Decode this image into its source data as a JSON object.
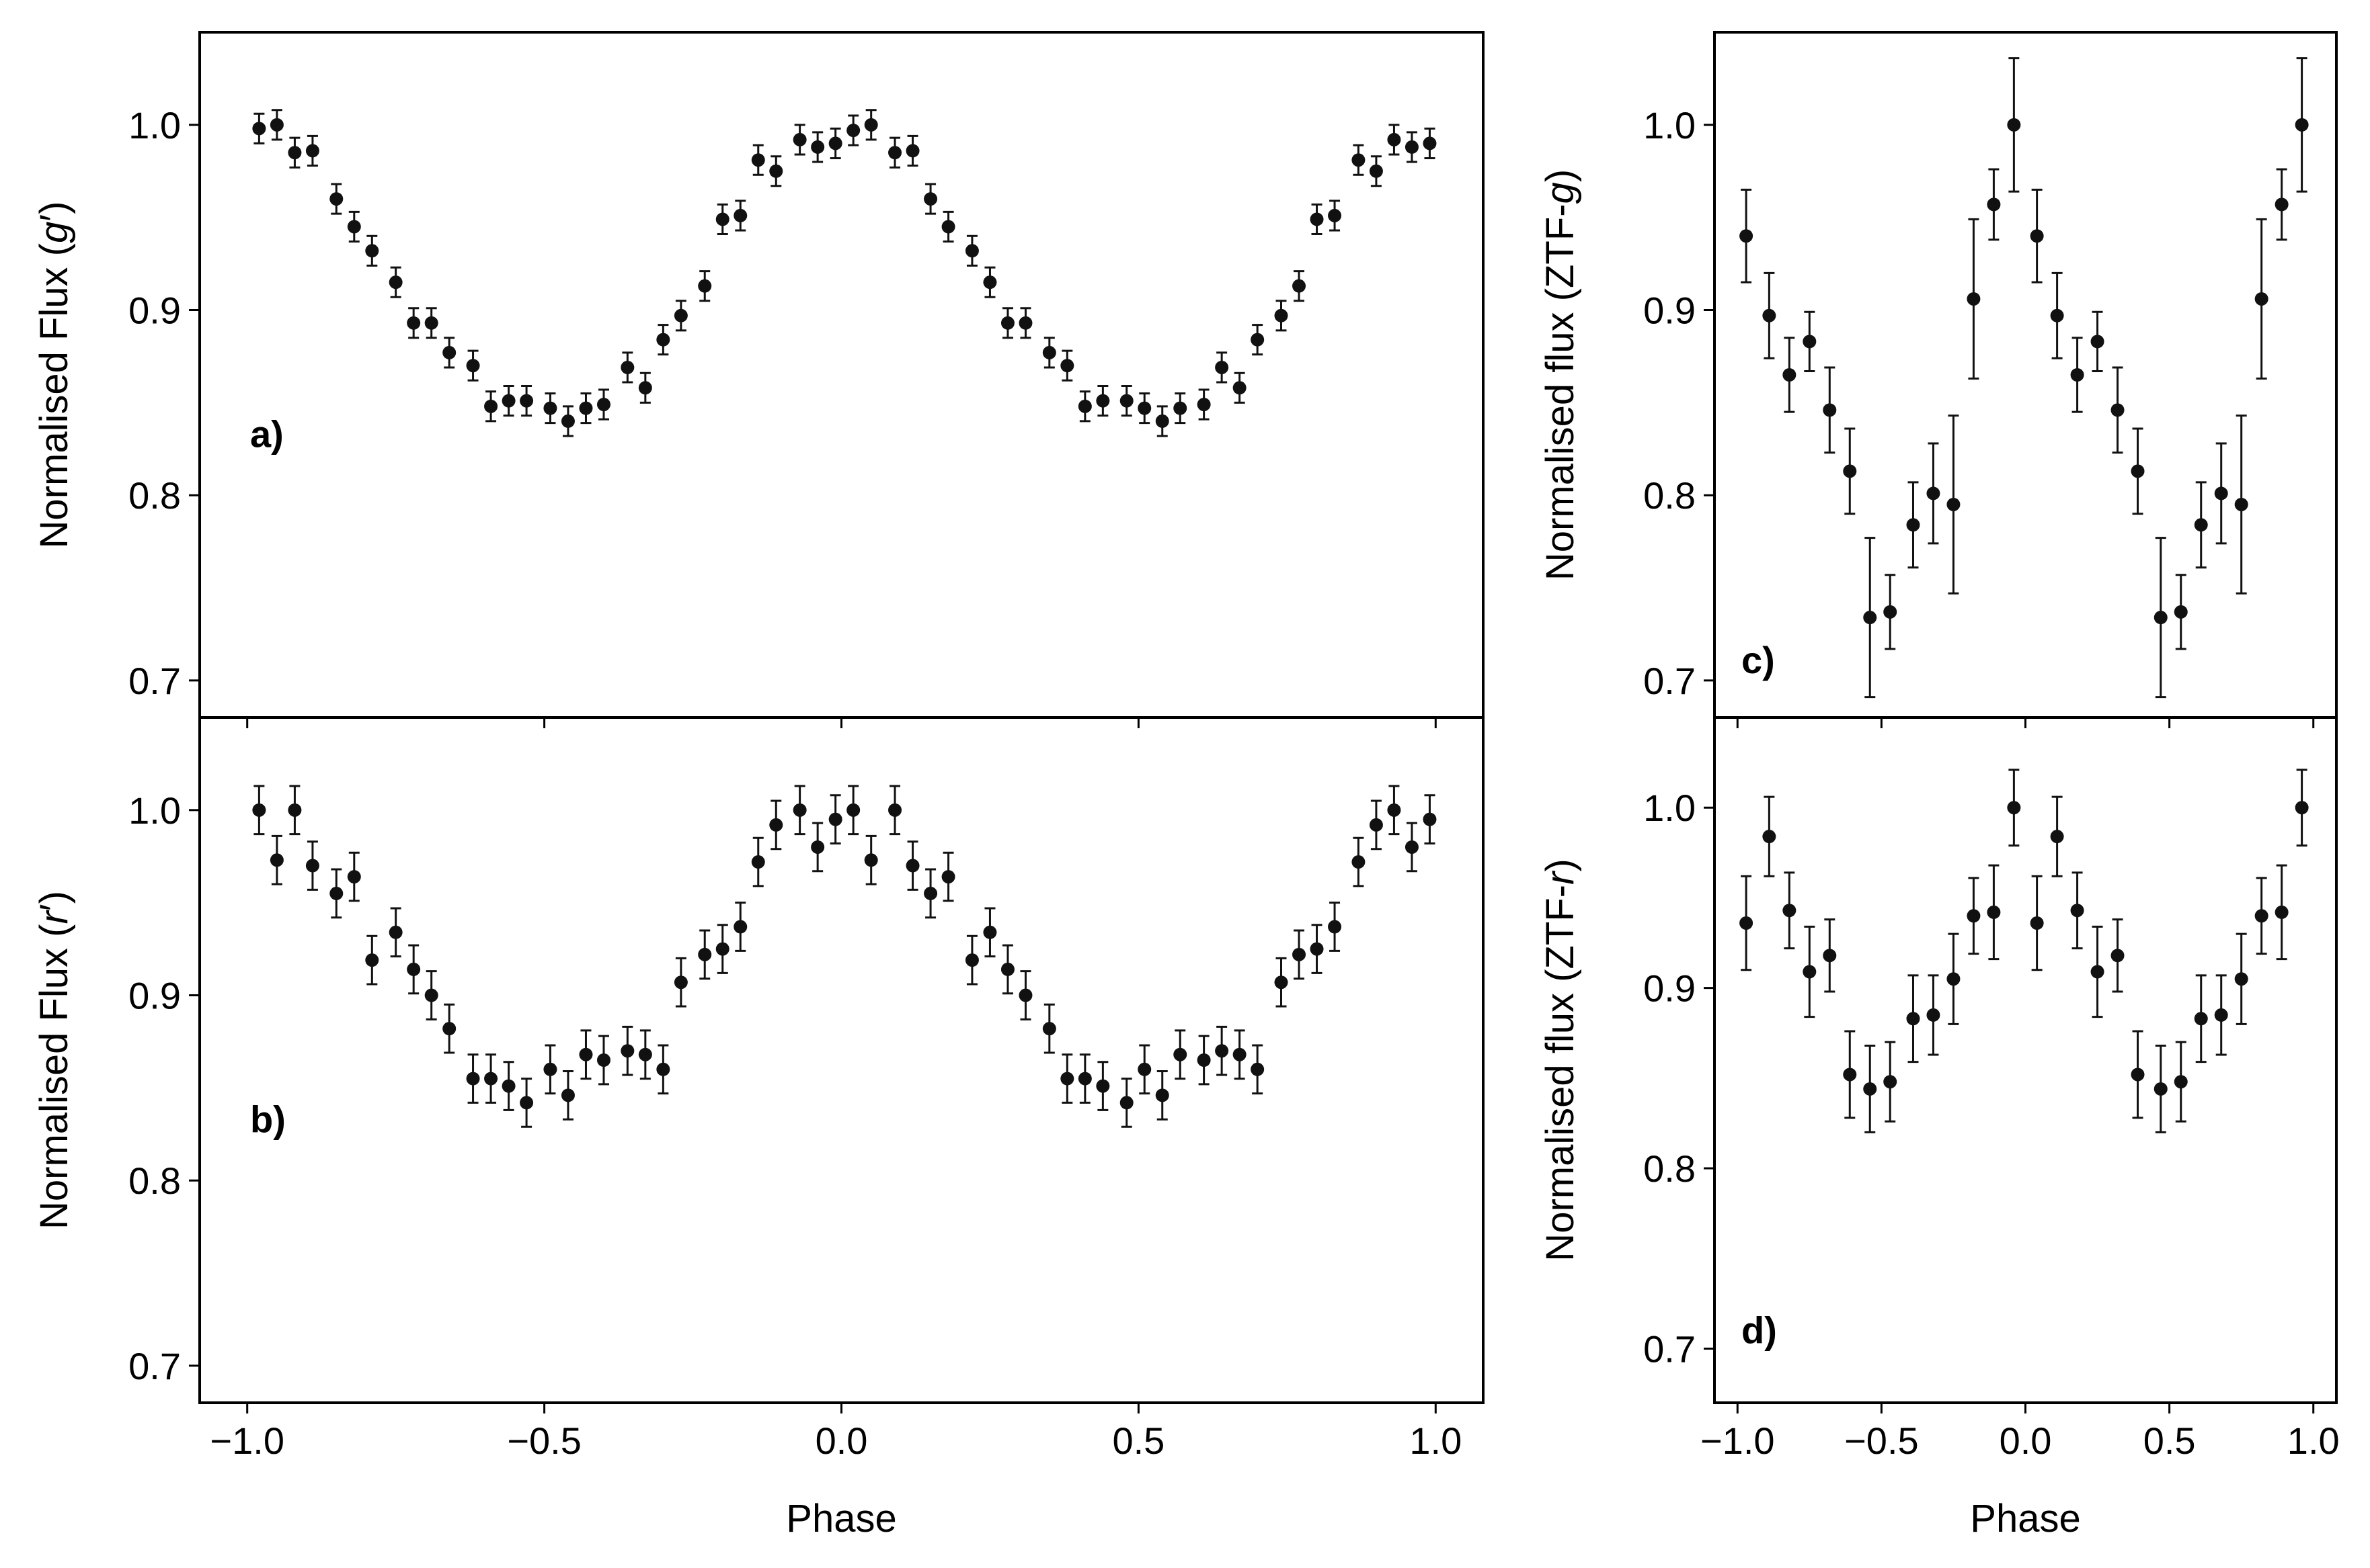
{
  "chart_data": [
    {
      "panel": "a)",
      "type": "scatter",
      "ylabel": "Normalised Flux (g′)",
      "xlabel": "",
      "xlim": [
        -1.08,
        1.08
      ],
      "ylim": [
        0.68,
        1.05
      ],
      "xticks": [
        "−1.0",
        "−0.5",
        "0.0",
        "0.5",
        "1.0"
      ],
      "yticks": [
        "0.7",
        "0.8",
        "0.9",
        "1.0"
      ],
      "marker_color": "#111111",
      "x": [
        -0.98,
        -0.95,
        -0.92,
        -0.89,
        -0.85,
        -0.82,
        -0.79,
        -0.75,
        -0.72,
        -0.69,
        -0.66,
        -0.62,
        -0.59,
        -0.56,
        -0.53,
        -0.49,
        -0.46,
        -0.43,
        -0.4,
        -0.36,
        -0.33,
        -0.3,
        -0.27,
        -0.23,
        -0.2,
        -0.17,
        -0.14,
        -0.11,
        -0.07,
        -0.04,
        -0.01,
        0.02,
        0.05,
        0.09,
        0.12,
        0.15,
        0.18,
        0.22,
        0.25,
        0.28,
        0.31,
        0.35,
        0.38,
        0.41,
        0.44,
        0.48,
        0.51,
        0.54,
        0.57,
        0.61,
        0.64,
        0.67,
        0.7,
        0.74,
        0.77,
        0.8,
        0.83,
        0.87,
        0.9,
        0.93,
        0.96,
        0.99
      ],
      "y": [
        0.998,
        1.0,
        0.985,
        0.986,
        0.96,
        0.945,
        0.932,
        0.915,
        0.893,
        0.893,
        0.877,
        0.87,
        0.848,
        0.851,
        0.851,
        0.847,
        0.84,
        0.847,
        0.849,
        0.869,
        0.858,
        0.884,
        0.897,
        0.913,
        0.949,
        0.951,
        0.981,
        0.975,
        0.992,
        0.988,
        0.99,
        0.997,
        1.0,
        0.985,
        0.986,
        0.96,
        0.945,
        0.932,
        0.915,
        0.893,
        0.893,
        0.877,
        0.87,
        0.848,
        0.851,
        0.851,
        0.847,
        0.84,
        0.847,
        0.849,
        0.869,
        0.858,
        0.884,
        0.897,
        0.913,
        0.949,
        0.951,
        0.981,
        0.975,
        0.992,
        0.988,
        0.99
      ],
      "yerr": [
        0.008,
        0.008,
        0.008,
        0.008,
        0.008,
        0.008,
        0.008,
        0.008,
        0.008,
        0.008,
        0.008,
        0.008,
        0.008,
        0.008,
        0.008,
        0.008,
        0.008,
        0.008,
        0.008,
        0.008,
        0.008,
        0.008,
        0.008,
        0.008,
        0.008,
        0.008,
        0.008,
        0.008,
        0.008,
        0.008,
        0.008,
        0.008,
        0.008,
        0.008,
        0.008,
        0.008,
        0.008,
        0.008,
        0.008,
        0.008,
        0.008,
        0.008,
        0.008,
        0.008,
        0.008,
        0.008,
        0.008,
        0.008,
        0.008,
        0.008,
        0.008,
        0.008,
        0.008,
        0.008,
        0.008,
        0.008,
        0.008,
        0.008,
        0.008,
        0.008,
        0.008,
        0.008
      ]
    },
    {
      "panel": "b)",
      "type": "scatter",
      "ylabel": "Normalised Flux (r′)",
      "xlabel": "Phase",
      "xlim": [
        -1.08,
        1.08
      ],
      "ylim": [
        0.68,
        1.05
      ],
      "xticks": [
        "−1.0",
        "−0.5",
        "0.0",
        "0.5",
        "1.0"
      ],
      "yticks": [
        "0.7",
        "0.8",
        "0.9",
        "1.0"
      ],
      "marker_color": "#111111",
      "x": [
        -0.98,
        -0.95,
        -0.92,
        -0.89,
        -0.85,
        -0.82,
        -0.79,
        -0.75,
        -0.72,
        -0.69,
        -0.66,
        -0.62,
        -0.59,
        -0.56,
        -0.53,
        -0.49,
        -0.46,
        -0.43,
        -0.4,
        -0.36,
        -0.33,
        -0.3,
        -0.27,
        -0.23,
        -0.2,
        -0.17,
        -0.14,
        -0.11,
        -0.07,
        -0.04,
        -0.01,
        0.02,
        0.05,
        0.09,
        0.12,
        0.15,
        0.18,
        0.22,
        0.25,
        0.28,
        0.31,
        0.35,
        0.38,
        0.41,
        0.44,
        0.48,
        0.51,
        0.54,
        0.57,
        0.61,
        0.64,
        0.67,
        0.7,
        0.74,
        0.77,
        0.8,
        0.83,
        0.87,
        0.9,
        0.93,
        0.96,
        0.99
      ],
      "y": [
        1.0,
        0.973,
        1.0,
        0.97,
        0.955,
        0.964,
        0.919,
        0.934,
        0.914,
        0.9,
        0.882,
        0.855,
        0.855,
        0.851,
        0.842,
        0.86,
        0.846,
        0.868,
        0.865,
        0.87,
        0.868,
        0.86,
        0.907,
        0.922,
        0.925,
        0.937,
        0.972,
        0.992,
        1.0,
        0.98,
        0.995,
        1.0,
        0.973,
        1.0,
        0.97,
        0.955,
        0.964,
        0.919,
        0.934,
        0.914,
        0.9,
        0.882,
        0.855,
        0.855,
        0.851,
        0.842,
        0.86,
        0.846,
        0.868,
        0.865,
        0.87,
        0.868,
        0.86,
        0.907,
        0.922,
        0.925,
        0.937,
        0.972,
        0.992,
        1.0,
        0.98,
        0.995
      ],
      "yerr": [
        0.013,
        0.013,
        0.013,
        0.013,
        0.013,
        0.013,
        0.013,
        0.013,
        0.013,
        0.013,
        0.013,
        0.013,
        0.013,
        0.013,
        0.013,
        0.013,
        0.013,
        0.013,
        0.013,
        0.013,
        0.013,
        0.013,
        0.013,
        0.013,
        0.013,
        0.013,
        0.013,
        0.013,
        0.013,
        0.013,
        0.013,
        0.013,
        0.013,
        0.013,
        0.013,
        0.013,
        0.013,
        0.013,
        0.013,
        0.013,
        0.013,
        0.013,
        0.013,
        0.013,
        0.013,
        0.013,
        0.013,
        0.013,
        0.013,
        0.013,
        0.013,
        0.013,
        0.013,
        0.013,
        0.013,
        0.013,
        0.013,
        0.013,
        0.013,
        0.013,
        0.013,
        0.013
      ]
    },
    {
      "panel": "c)",
      "type": "scatter",
      "ylabel": "Normalised flux (ZTF-g)",
      "xlabel": "",
      "xlim": [
        -1.08,
        1.08
      ],
      "ylim": [
        0.68,
        1.05
      ],
      "xticks": [
        "−1.0",
        "−0.5",
        "0.0",
        "0.5",
        "1.0"
      ],
      "yticks": [
        "0.7",
        "0.8",
        "0.9",
        "1.0"
      ],
      "marker_color": "#111111",
      "x": [
        -0.97,
        -0.89,
        -0.82,
        -0.75,
        -0.68,
        -0.61,
        -0.54,
        -0.47,
        -0.39,
        -0.32,
        -0.25,
        -0.18,
        -0.11,
        -0.04,
        0.04,
        0.11,
        0.18,
        0.25,
        0.32,
        0.39,
        0.47,
        0.54,
        0.61,
        0.68,
        0.75,
        0.82,
        0.89,
        0.96
      ],
      "y": [
        0.94,
        0.897,
        0.865,
        0.883,
        0.846,
        0.813,
        0.734,
        0.737,
        0.784,
        0.801,
        0.795,
        0.906,
        0.957,
        1.0,
        0.94,
        0.897,
        0.865,
        0.883,
        0.846,
        0.813,
        0.734,
        0.737,
        0.784,
        0.801,
        0.795,
        0.906,
        0.957,
        1.0
      ],
      "yerr": [
        0.025,
        0.023,
        0.02,
        0.016,
        0.023,
        0.023,
        0.043,
        0.02,
        0.023,
        0.027,
        0.048,
        0.043,
        0.019,
        0.036,
        0.025,
        0.023,
        0.02,
        0.016,
        0.023,
        0.023,
        0.043,
        0.02,
        0.023,
        0.027,
        0.048,
        0.043,
        0.019,
        0.036
      ]
    },
    {
      "panel": "d)",
      "type": "scatter",
      "ylabel": "Normalised flux (ZTF-r)",
      "xlabel": "Phase",
      "xlim": [
        -1.08,
        1.08
      ],
      "ylim": [
        0.67,
        1.05
      ],
      "xticks": [
        "−1.0",
        "−0.5",
        "0.0",
        "0.5",
        "1.0"
      ],
      "yticks": [
        "0.7",
        "0.8",
        "0.9",
        "1.0"
      ],
      "marker_color": "#111111",
      "x": [
        -0.97,
        -0.89,
        -0.82,
        -0.75,
        -0.68,
        -0.61,
        -0.54,
        -0.47,
        -0.39,
        -0.32,
        -0.25,
        -0.18,
        -0.11,
        -0.04,
        0.04,
        0.11,
        0.18,
        0.25,
        0.32,
        0.39,
        0.47,
        0.54,
        0.61,
        0.68,
        0.75,
        0.82,
        0.89,
        0.96
      ],
      "y": [
        0.936,
        0.984,
        0.943,
        0.909,
        0.918,
        0.852,
        0.844,
        0.848,
        0.883,
        0.885,
        0.905,
        0.94,
        0.942,
        1.0,
        0.936,
        0.984,
        0.943,
        0.909,
        0.918,
        0.852,
        0.844,
        0.848,
        0.883,
        0.885,
        0.905,
        0.94,
        0.942,
        1.0
      ],
      "yerr": [
        0.026,
        0.022,
        0.021,
        0.025,
        0.02,
        0.024,
        0.024,
        0.022,
        0.024,
        0.022,
        0.025,
        0.021,
        0.026,
        0.021,
        0.026,
        0.022,
        0.021,
        0.025,
        0.02,
        0.024,
        0.024,
        0.022,
        0.024,
        0.022,
        0.025,
        0.021,
        0.026,
        0.021
      ]
    }
  ]
}
